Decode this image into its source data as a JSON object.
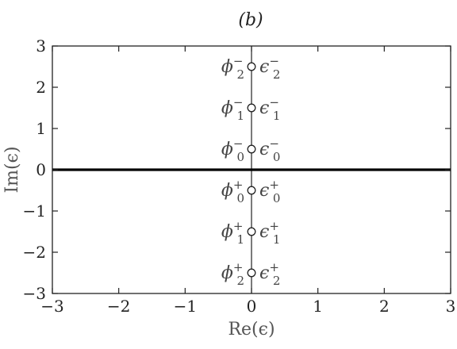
{
  "chart_data": {
    "type": "scatter",
    "title": "(b)",
    "xlabel": "Re(ϵ)",
    "ylabel": "Im(ϵ)",
    "xlim": [
      -3,
      3
    ],
    "ylim": [
      -3,
      3
    ],
    "xticks": [
      -3,
      -2,
      -1,
      0,
      1,
      2,
      3
    ],
    "yticks": [
      -3,
      -2,
      -1,
      0,
      1,
      2,
      3
    ],
    "xtick_labels": [
      "−3",
      "−2",
      "−1",
      "0",
      "1",
      "2",
      "3"
    ],
    "ytick_labels": [
      "−3",
      "−2",
      "−1",
      "0",
      "1",
      "2",
      "3"
    ],
    "grid": false,
    "vertical_line_x": 0,
    "horizontal_line_y": 0,
    "points": [
      {
        "x": 0,
        "y": 2.5,
        "left": {
          "base": "ϕ",
          "sub": "2",
          "sup": "−"
        },
        "right": {
          "base": "ϵ",
          "sub": "2",
          "sup": "−"
        }
      },
      {
        "x": 0,
        "y": 1.5,
        "left": {
          "base": "ϕ",
          "sub": "1",
          "sup": "−"
        },
        "right": {
          "base": "ϵ",
          "sub": "1",
          "sup": "−"
        }
      },
      {
        "x": 0,
        "y": 0.5,
        "left": {
          "base": "ϕ",
          "sub": "0",
          "sup": "−"
        },
        "right": {
          "base": "ϵ",
          "sub": "0",
          "sup": "−"
        }
      },
      {
        "x": 0,
        "y": -0.5,
        "left": {
          "base": "ϕ",
          "sub": "0",
          "sup": "+"
        },
        "right": {
          "base": "ϵ",
          "sub": "0",
          "sup": "+"
        }
      },
      {
        "x": 0,
        "y": -1.5,
        "left": {
          "base": "ϕ",
          "sub": "1",
          "sup": "+"
        },
        "right": {
          "base": "ϵ",
          "sub": "1",
          "sup": "+"
        }
      },
      {
        "x": 0,
        "y": -2.5,
        "left": {
          "base": "ϕ",
          "sub": "2",
          "sup": "+"
        },
        "right": {
          "base": "ϵ",
          "sub": "2",
          "sup": "+"
        }
      }
    ]
  }
}
